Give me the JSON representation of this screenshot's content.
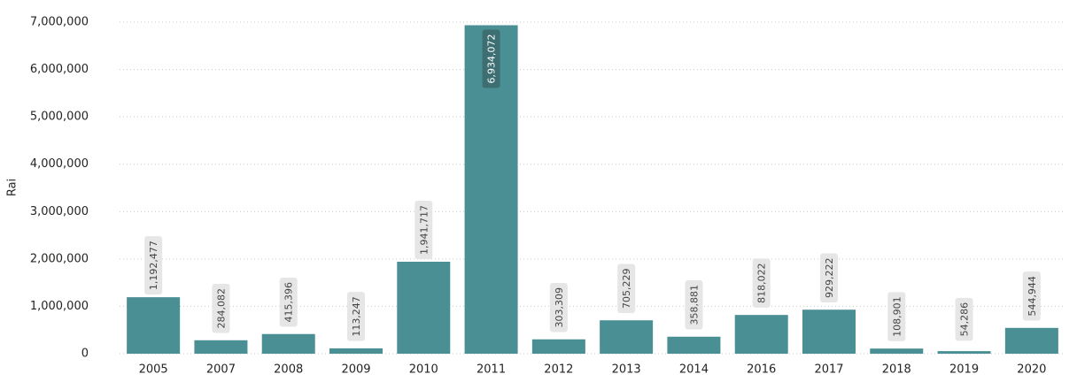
{
  "chart_data": {
    "type": "bar",
    "y_label": "Rai",
    "categories": [
      "2005",
      "2007",
      "2008",
      "2009",
      "2010",
      "2011",
      "2012",
      "2013",
      "2014",
      "2016",
      "2017",
      "2018",
      "2019",
      "2020"
    ],
    "values": [
      1192477,
      284082,
      415396,
      113247,
      1941717,
      6934072,
      303309,
      705229,
      358881,
      818022,
      929222,
      108901,
      54286,
      544944
    ],
    "value_labels": [
      "1,192,477",
      "284,082",
      "415,396",
      "113,247",
      "1,941,717",
      "6,934,072",
      "303,309",
      "705,229",
      "358,881",
      "818,022",
      "929,222",
      "108,901",
      "54,286",
      "544,944"
    ],
    "color": "#4a8f94",
    "ylim": [
      0,
      7000000
    ],
    "yticks": [
      0,
      {
        "value": 1000000,
        "label": "1,000,000"
      },
      {
        "value": 2000000,
        "label": "2,000,000"
      },
      {
        "value": 3000000,
        "label": "3,000,000"
      },
      {
        "value": 4000000,
        "label": "4,000,000"
      },
      {
        "value": 5000000,
        "label": "5,000,000"
      },
      {
        "value": 6000000,
        "label": "6,000,000"
      },
      {
        "value": 7000000,
        "label": "7,000,000"
      }
    ],
    "grid": true
  }
}
